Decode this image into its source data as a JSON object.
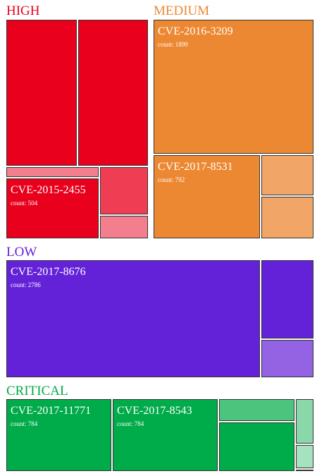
{
  "chart_data": {
    "type": "treemap",
    "count_prefix": "count: ",
    "groups": [
      {
        "name": "HIGH",
        "color": "#e8001c",
        "items": [
          {
            "value": 1450,
            "shade": "#e8001c"
          },
          {
            "value": 1450,
            "shade": "#e8001c"
          },
          {
            "value": 130,
            "shade": "#f37f8e"
          },
          {
            "name": "CVE-2015-2455",
            "value": 504,
            "shown_count": "504",
            "shade": "#e8001c"
          },
          {
            "value": 280,
            "shade": "#ef3d54"
          },
          {
            "value": 130,
            "shade": "#f37f8e"
          }
        ]
      },
      {
        "name": "MEDIUM",
        "color": "#ed8832",
        "items": [
          {
            "name": "CVE-2016-3209",
            "value": 1899,
            "shown_count": "1899",
            "shade": "#ed8832"
          },
          {
            "name": "CVE-2017-8531",
            "value": 792,
            "shown_count": "792",
            "shade": "#ed8832"
          },
          {
            "value": 185,
            "shade": "#f1a566"
          },
          {
            "value": 185,
            "shade": "#f1a566"
          }
        ]
      },
      {
        "name": "LOW",
        "color": "#6422d8",
        "items": [
          {
            "name": "CVE-2017-8676",
            "value": 2786,
            "shown_count": "2786",
            "shade": "#6422d8"
          },
          {
            "value": 435,
            "shade": "#6422d8"
          },
          {
            "value": 230,
            "shade": "#9463e4"
          }
        ]
      },
      {
        "name": "CRITICAL",
        "color": "#00ab49",
        "items": [
          {
            "name": "CVE-2017-11771",
            "value": 784,
            "shown_count": "784",
            "shade": "#00ab49"
          },
          {
            "name": "CVE-2017-8543",
            "value": 784,
            "shown_count": "784",
            "shade": "#00ab49"
          },
          {
            "value": 170,
            "shade": "#4cc47e"
          },
          {
            "value": 370,
            "shade": "#00ab49"
          },
          {
            "value": 115,
            "shade": "#8ad8a9"
          },
          {
            "value": 55,
            "shade": "#a6e2bf"
          },
          {
            "value": 5,
            "shade": "#c6eed6"
          }
        ]
      }
    ]
  }
}
